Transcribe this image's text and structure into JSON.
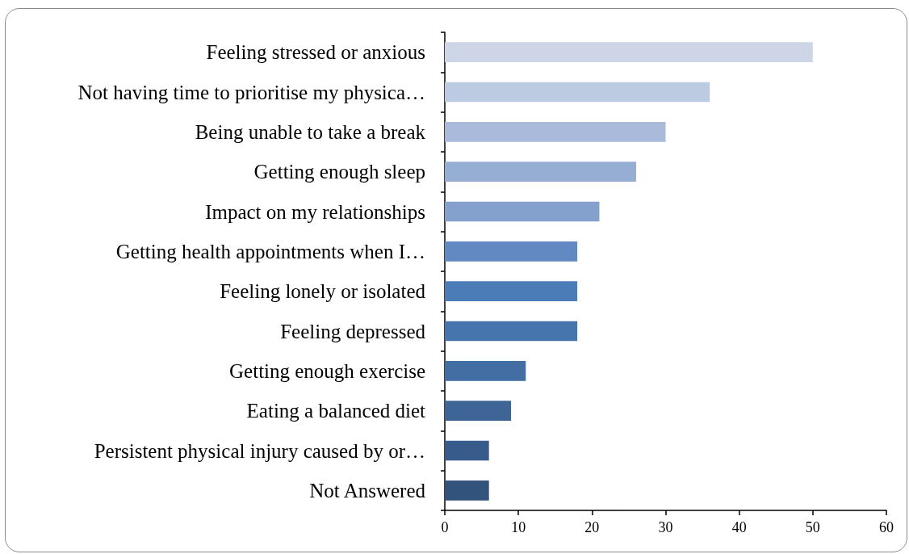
{
  "chart_data": {
    "type": "bar",
    "orientation": "horizontal",
    "categories": [
      "Feeling stressed or anxious",
      "Not having time to prioritise my physica…",
      "Being unable to take a break",
      "Getting enough sleep",
      "Impact on my relationships",
      "Getting health appointments when I…",
      "Feeling lonely or isolated",
      "Feeling depressed",
      "Getting enough exercise",
      "Eating a balanced diet",
      "Persistent physical injury caused by or…",
      "Not Answered"
    ],
    "values": [
      50,
      36,
      30,
      26,
      21,
      18,
      18,
      18,
      11,
      9,
      6,
      6
    ],
    "colors": [
      "#cdd5e6",
      "#bccae2",
      "#a9badb",
      "#97aed4",
      "#84a0cc",
      "#6289c2",
      "#4c7cb8",
      "#4674ad",
      "#436ea3",
      "#3e6596",
      "#375c8b",
      "#31537c"
    ],
    "xlim": [
      0,
      60
    ],
    "xticks": [
      0,
      10,
      20,
      30,
      40,
      50,
      60
    ]
  }
}
